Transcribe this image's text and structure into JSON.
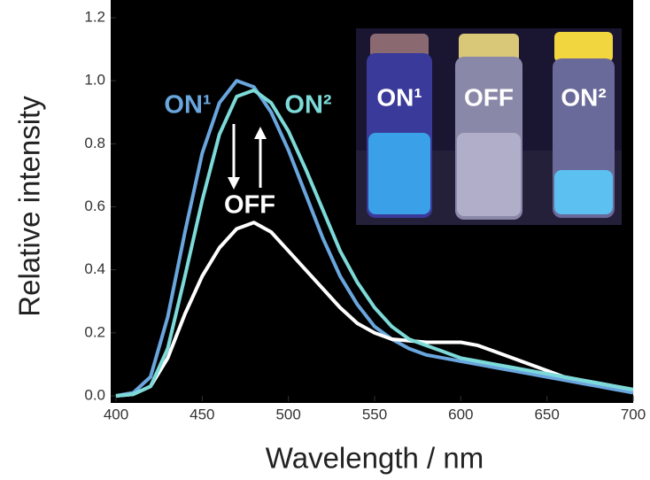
{
  "chart_data": {
    "type": "line",
    "xlabel": "Wavelength / nm",
    "ylabel": "Relative intensity",
    "x": [
      400,
      410,
      420,
      430,
      440,
      450,
      460,
      470,
      480,
      490,
      500,
      510,
      520,
      530,
      540,
      550,
      560,
      570,
      580,
      590,
      600,
      610,
      620,
      630,
      640,
      650,
      660,
      670,
      680,
      690,
      700
    ],
    "series": [
      {
        "name": "ON¹",
        "color": "#6aa6de",
        "values": [
          0.0,
          0.01,
          0.06,
          0.25,
          0.52,
          0.77,
          0.93,
          1.0,
          0.98,
          0.9,
          0.78,
          0.64,
          0.5,
          0.38,
          0.29,
          0.22,
          0.18,
          0.15,
          0.13,
          0.12,
          0.11,
          0.1,
          0.09,
          0.08,
          0.07,
          0.06,
          0.05,
          0.04,
          0.03,
          0.02,
          0.01
        ]
      },
      {
        "name": "OFF",
        "color": "#ffffff",
        "values": [
          0.0,
          0.005,
          0.03,
          0.12,
          0.26,
          0.38,
          0.47,
          0.53,
          0.55,
          0.52,
          0.46,
          0.4,
          0.34,
          0.28,
          0.23,
          0.2,
          0.18,
          0.175,
          0.17,
          0.17,
          0.17,
          0.16,
          0.14,
          0.12,
          0.1,
          0.08,
          0.06,
          0.05,
          0.04,
          0.03,
          0.02
        ]
      },
      {
        "name": "ON²",
        "color": "#7cdad8",
        "values": [
          0.0,
          0.005,
          0.03,
          0.15,
          0.38,
          0.62,
          0.83,
          0.95,
          0.97,
          0.93,
          0.84,
          0.72,
          0.59,
          0.46,
          0.36,
          0.28,
          0.22,
          0.18,
          0.16,
          0.14,
          0.12,
          0.11,
          0.1,
          0.09,
          0.08,
          0.07,
          0.06,
          0.05,
          0.04,
          0.03,
          0.02
        ]
      }
    ],
    "xlim": [
      400,
      700
    ],
    "ylim": [
      0,
      1.2
    ],
    "xticks": [
      400,
      450,
      500,
      550,
      600,
      650,
      700
    ],
    "yticks": [
      {
        "value": 0,
        "label": "0.0"
      },
      0.2,
      0.4,
      0.6,
      0.8,
      {
        "value": 1,
        "label": "1.0"
      },
      1.2
    ],
    "inset": {
      "labels": [
        "ON¹",
        "OFF",
        "ON²"
      ]
    }
  }
}
